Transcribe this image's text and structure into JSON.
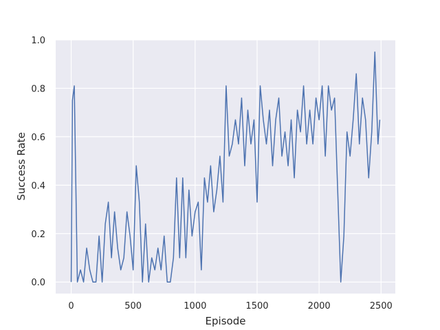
{
  "chart_data": {
    "type": "line",
    "x_label": "Episode",
    "y_label": "Success Rate",
    "xlim": [
      -125,
      2615
    ],
    "ylim": [
      -0.0476,
      1.0
    ],
    "xticks": [
      0,
      500,
      1000,
      1500,
      2000,
      2500
    ],
    "yticks": [
      {
        "value": 0,
        "label": "0.0"
      },
      0.2,
      0.4,
      0.6,
      0.8,
      {
        "value": 1,
        "label": "1.0"
      }
    ],
    "grid": true,
    "background": "#eaeaf2",
    "x": [
      0,
      10,
      25,
      50,
      75,
      100,
      125,
      150,
      175,
      200,
      225,
      250,
      275,
      300,
      325,
      350,
      375,
      400,
      425,
      450,
      475,
      500,
      525,
      550,
      575,
      600,
      625,
      650,
      675,
      700,
      725,
      750,
      775,
      800,
      825,
      850,
      875,
      900,
      925,
      950,
      975,
      1000,
      1025,
      1050,
      1075,
      1100,
      1125,
      1150,
      1175,
      1200,
      1225,
      1250,
      1275,
      1300,
      1325,
      1350,
      1375,
      1400,
      1425,
      1450,
      1475,
      1500,
      1525,
      1550,
      1575,
      1600,
      1625,
      1650,
      1675,
      1700,
      1725,
      1750,
      1775,
      1800,
      1825,
      1850,
      1875,
      1900,
      1925,
      1950,
      1975,
      2000,
      2025,
      2050,
      2075,
      2100,
      2125,
      2150,
      2175,
      2200,
      2225,
      2250,
      2275,
      2300,
      2325,
      2350,
      2375,
      2400,
      2425,
      2450,
      2475,
      2490
    ],
    "series": [
      {
        "color": "#4c72b0",
        "values": [
          0,
          0.75,
          0.81,
          0,
          0.05,
          0,
          0.14,
          0.05,
          0,
          0,
          0.19,
          0,
          0.24,
          0.33,
          0.1,
          0.29,
          0.14,
          0.05,
          0.1,
          0.29,
          0.19,
          0.05,
          0.48,
          0.33,
          0,
          0.24,
          0,
          0.1,
          0.05,
          0.14,
          0.05,
          0.19,
          0,
          0,
          0.1,
          0.43,
          0.1,
          0.43,
          0.1,
          0.38,
          0.19,
          0.29,
          0.33,
          0.05,
          0.43,
          0.33,
          0.48,
          0.29,
          0.38,
          0.52,
          0.33,
          0.81,
          0.52,
          0.57,
          0.67,
          0.57,
          0.76,
          0.48,
          0.71,
          0.57,
          0.67,
          0.33,
          0.81,
          0.67,
          0.57,
          0.71,
          0.48,
          0.67,
          0.76,
          0.52,
          0.62,
          0.48,
          0.67,
          0.43,
          0.71,
          0.62,
          0.81,
          0.57,
          0.71,
          0.57,
          0.76,
          0.67,
          0.81,
          0.52,
          0.81,
          0.71,
          0.76,
          0.38,
          0,
          0.19,
          0.62,
          0.52,
          0.67,
          0.86,
          0.57,
          0.76,
          0.67,
          0.43,
          0.62,
          0.95,
          0.57,
          0.67
        ]
      }
    ]
  }
}
